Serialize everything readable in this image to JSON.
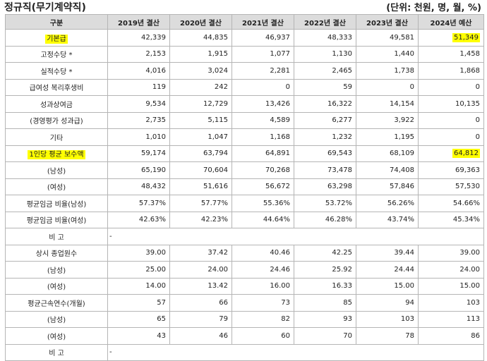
{
  "title": "정규직(무기계약직)",
  "unit": "(단위: 천원, 명, 월, %)",
  "columns": [
    "구분",
    "2019년 결산",
    "2020년 결산",
    "2021년 결산",
    "2022년 결산",
    "2023년 결산",
    "2024년 예산"
  ],
  "rows": [
    {
      "label": "기본급",
      "values": [
        "42,339",
        "44,835",
        "46,937",
        "48,333",
        "49,581",
        "51,349"
      ],
      "highlight": true
    },
    {
      "label": "고정수당 *",
      "values": [
        "2,153",
        "1,915",
        "1,077",
        "1,130",
        "1,440",
        "1,458"
      ]
    },
    {
      "label": "실적수당 *",
      "values": [
        "4,016",
        "3,024",
        "2,281",
        "2,465",
        "1,738",
        "1,868"
      ]
    },
    {
      "label": "급여성 복리후생비",
      "values": [
        "119",
        "242",
        "0",
        "59",
        "0",
        "0"
      ]
    },
    {
      "label": "성과상여금",
      "values": [
        "9,534",
        "12,729",
        "13,426",
        "16,322",
        "14,154",
        "10,135"
      ]
    },
    {
      "label": "(경영평가 성과급)",
      "values": [
        "2,735",
        "5,115",
        "4,589",
        "6,277",
        "3,922",
        "0"
      ]
    },
    {
      "label": "기타",
      "values": [
        "1,010",
        "1,047",
        "1,168",
        "1,232",
        "1,195",
        "0"
      ]
    },
    {
      "label": "1인당 평균 보수액",
      "values": [
        "59,174",
        "63,794",
        "64,891",
        "69,543",
        "68,109",
        "64,812"
      ],
      "highlight": true
    },
    {
      "label": "(남성)",
      "values": [
        "65,190",
        "70,604",
        "70,268",
        "73,478",
        "74,408",
        "69,363"
      ]
    },
    {
      "label": "(여성)",
      "values": [
        "48,432",
        "51,616",
        "56,672",
        "63,298",
        "57,846",
        "57,530"
      ]
    },
    {
      "label": "평균임금 비율(남성)",
      "values": [
        "57.37%",
        "57.77%",
        "55.36%",
        "53.72%",
        "56.26%",
        "54.66%"
      ]
    },
    {
      "label": "평균임금 비율(여성)",
      "values": [
        "42.63%",
        "42.23%",
        "44.64%",
        "46.28%",
        "43.74%",
        "45.34%"
      ]
    },
    {
      "label": "비 고",
      "note": "-"
    },
    {
      "label": "상시 종업원수",
      "values": [
        "39.00",
        "37.42",
        "40.46",
        "42.25",
        "39.44",
        "39.00"
      ]
    },
    {
      "label": "(남성)",
      "values": [
        "25.00",
        "24.00",
        "24.46",
        "25.92",
        "24.44",
        "24.00"
      ]
    },
    {
      "label": "(여성)",
      "values": [
        "14.00",
        "13.42",
        "16.00",
        "16.33",
        "15.00",
        "15.00"
      ]
    },
    {
      "label": "평균근속연수(개월)",
      "values": [
        "57",
        "66",
        "73",
        "85",
        "94",
        "103"
      ]
    },
    {
      "label": "(남성)",
      "values": [
        "65",
        "79",
        "82",
        "93",
        "103",
        "113"
      ]
    },
    {
      "label": "(여성)",
      "values": [
        "43",
        "46",
        "60",
        "70",
        "78",
        "86"
      ]
    },
    {
      "label": "비 고",
      "note": "-"
    }
  ]
}
